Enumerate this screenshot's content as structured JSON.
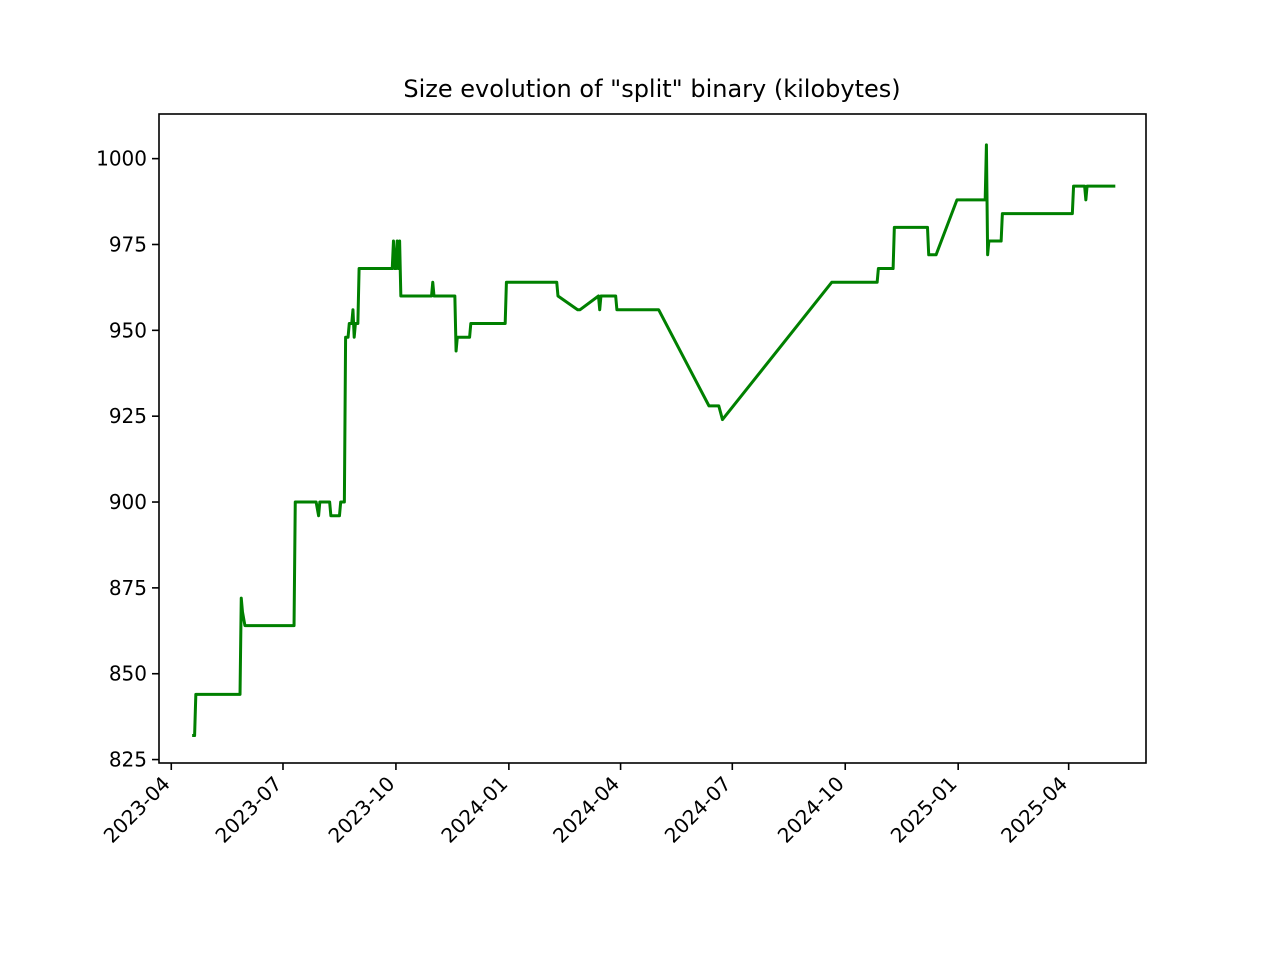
{
  "chart_data": {
    "type": "line",
    "title": "Size evolution of \"split\" binary (kilobytes)",
    "xlabel": "",
    "ylabel": "",
    "x_ticks": [
      "2023-04",
      "2023-07",
      "2023-10",
      "2024-01",
      "2024-04",
      "2024-07",
      "2024-10",
      "2025-01",
      "2025-04"
    ],
    "y_ticks": [
      825,
      850,
      875,
      900,
      925,
      950,
      975,
      1000
    ],
    "ylim": [
      824,
      1013
    ],
    "xlim": [
      "2023-03-22",
      "2025-06-03"
    ],
    "grid": false,
    "legend": "none",
    "series": [
      {
        "color": "#008000",
        "points": [
          [
            "2023-04-18",
            832
          ],
          [
            "2023-04-20",
            832
          ],
          [
            "2023-04-21",
            844
          ],
          [
            "2023-05-27",
            844
          ],
          [
            "2023-05-28",
            872
          ],
          [
            "2023-05-29",
            868
          ],
          [
            "2023-05-31",
            864
          ],
          [
            "2023-07-10",
            864
          ],
          [
            "2023-07-11",
            900
          ],
          [
            "2023-07-28",
            900
          ],
          [
            "2023-07-30",
            896
          ],
          [
            "2023-07-31",
            900
          ],
          [
            "2023-08-08",
            900
          ],
          [
            "2023-08-09",
            896
          ],
          [
            "2023-08-16",
            896
          ],
          [
            "2023-08-17",
            900
          ],
          [
            "2023-08-20",
            900
          ],
          [
            "2023-08-21",
            948
          ],
          [
            "2023-08-23",
            948
          ],
          [
            "2023-08-24",
            952
          ],
          [
            "2023-08-26",
            952
          ],
          [
            "2023-08-27",
            956
          ],
          [
            "2023-08-28",
            948
          ],
          [
            "2023-08-29",
            952
          ],
          [
            "2023-08-31",
            952
          ],
          [
            "2023-09-01",
            968
          ],
          [
            "2023-09-28",
            968
          ],
          [
            "2023-09-29",
            976
          ],
          [
            "2023-09-30",
            968
          ],
          [
            "2023-10-01",
            968
          ],
          [
            "2023-10-02",
            976
          ],
          [
            "2023-10-03",
            968
          ],
          [
            "2023-10-04",
            976
          ],
          [
            "2023-10-05",
            960
          ],
          [
            "2023-10-30",
            960
          ],
          [
            "2023-10-31",
            964
          ],
          [
            "2023-11-01",
            960
          ],
          [
            "2023-11-18",
            960
          ],
          [
            "2023-11-19",
            944
          ],
          [
            "2023-11-20",
            948
          ],
          [
            "2023-11-30",
            948
          ],
          [
            "2023-12-01",
            952
          ],
          [
            "2023-12-29",
            952
          ],
          [
            "2023-12-30",
            964
          ],
          [
            "2024-02-09",
            964
          ],
          [
            "2024-02-10",
            960
          ],
          [
            "2024-02-26",
            956
          ],
          [
            "2024-02-28",
            956
          ],
          [
            "2024-03-14",
            960
          ],
          [
            "2024-03-15",
            956
          ],
          [
            "2024-03-16",
            960
          ],
          [
            "2024-03-28",
            960
          ],
          [
            "2024-03-29",
            956
          ],
          [
            "2024-05-02",
            956
          ],
          [
            "2024-06-12",
            928
          ],
          [
            "2024-06-20",
            928
          ],
          [
            "2024-06-23",
            924
          ],
          [
            "2024-09-20",
            964
          ],
          [
            "2024-10-27",
            964
          ],
          [
            "2024-10-28",
            968
          ],
          [
            "2024-11-09",
            968
          ],
          [
            "2024-11-10",
            980
          ],
          [
            "2024-12-07",
            980
          ],
          [
            "2024-12-08",
            972
          ],
          [
            "2024-12-14",
            972
          ],
          [
            "2024-12-31",
            988
          ],
          [
            "2025-01-23",
            988
          ],
          [
            "2025-01-24",
            1004
          ],
          [
            "2025-01-25",
            972
          ],
          [
            "2025-01-26",
            976
          ],
          [
            "2025-02-05",
            976
          ],
          [
            "2025-02-06",
            984
          ],
          [
            "2025-04-04",
            984
          ],
          [
            "2025-04-05",
            992
          ],
          [
            "2025-04-14",
            992
          ],
          [
            "2025-04-15",
            988
          ],
          [
            "2025-04-16",
            992
          ],
          [
            "2025-05-09",
            992
          ]
        ]
      }
    ]
  }
}
